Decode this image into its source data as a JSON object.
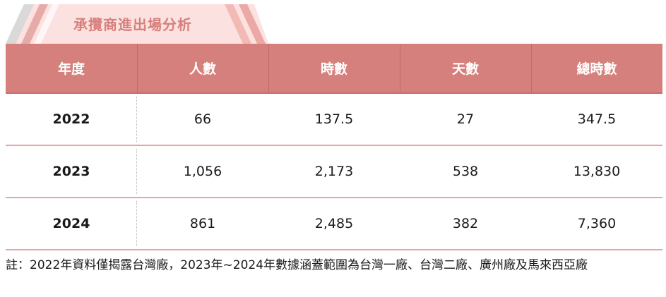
{
  "title": "承攬商進出場分析",
  "colors": {
    "header_bg": "#d5807c",
    "title_text": "#d77f7b",
    "tab_bg": "#fbe1df",
    "row_line": "#e3a8a5"
  },
  "table": {
    "headers": [
      "年度",
      "人數",
      "時數",
      "天數",
      "總時數"
    ],
    "rows": [
      [
        "2022",
        "66",
        "137.5",
        "27",
        "347.5"
      ],
      [
        "2023",
        "1,056",
        "2,173",
        "538",
        "13,830"
      ],
      [
        "2024",
        "861",
        "2,485",
        "382",
        "7,360"
      ]
    ]
  },
  "note": "註：2022年資料僅揭露台灣廠，2023年~2024年數據涵蓋範圍為台灣一廠、台灣二廠、廣州廠及馬來西亞廠"
}
